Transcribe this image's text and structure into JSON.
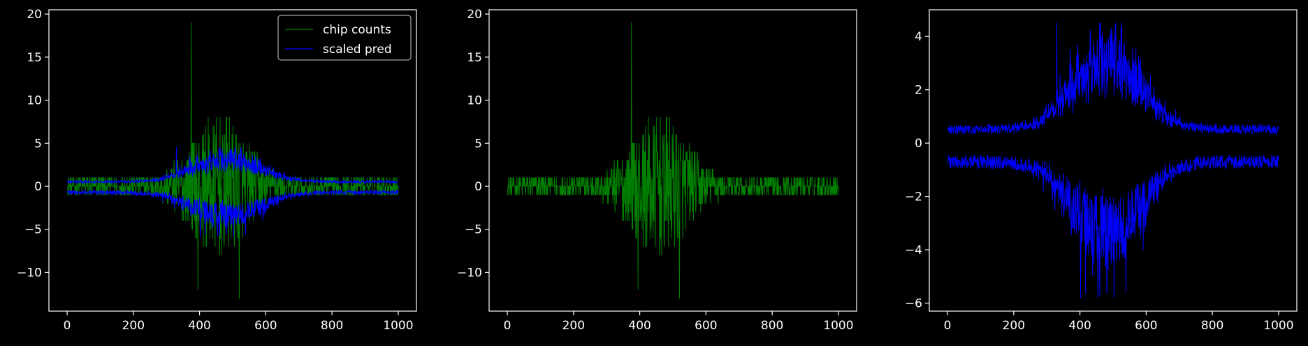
{
  "colors": {
    "background": "#000000",
    "axes": "#ffffff",
    "green": "#008000",
    "blue": "#0000ff"
  },
  "chart_data": [
    {
      "type": "line",
      "title": "",
      "xlabel": "",
      "ylabel": "",
      "xlim": [
        -55,
        1055
      ],
      "ylim": [
        -14.5,
        20.5
      ],
      "xticks": [
        0,
        200,
        400,
        600,
        800,
        1000
      ],
      "yticks": [
        -10,
        -5,
        0,
        5,
        10,
        15,
        20
      ],
      "legend": {
        "position": "top-right",
        "entries": [
          "chip counts",
          "scaled pred"
        ]
      },
      "series": [
        {
          "name": "chip counts",
          "color": "#008000",
          "kind": "counts",
          "x_range": [
            0,
            1000
          ],
          "peaks": [
            [
              375,
              19
            ],
            [
              395,
              7
            ],
            [
              470,
              6
            ],
            [
              510,
              6
            ]
          ],
          "troughs": [
            [
              395,
              -12
            ],
            [
              520,
              -13
            ],
            [
              440,
              -6
            ]
          ],
          "baseline_amplitude": 1
        },
        {
          "name": "scaled pred",
          "color": "#0000ff",
          "kind": "envelope",
          "x_range": [
            0,
            1000
          ],
          "upper_range": [
            0.2,
            4.5
          ],
          "lower_range": [
            -0.2,
            -5.8
          ],
          "active_region": [
            300,
            700
          ]
        }
      ]
    },
    {
      "type": "line",
      "title": "",
      "xlabel": "",
      "ylabel": "",
      "xlim": [
        -55,
        1055
      ],
      "ylim": [
        -14.5,
        20.5
      ],
      "xticks": [
        0,
        200,
        400,
        600,
        800,
        1000
      ],
      "yticks": [
        -10,
        -5,
        0,
        5,
        10,
        15,
        20
      ],
      "series": [
        {
          "name": "chip counts",
          "color": "#008000",
          "kind": "counts",
          "x_range": [
            0,
            1000
          ],
          "peaks": [
            [
              375,
              19
            ],
            [
              395,
              7
            ],
            [
              470,
              6
            ],
            [
              510,
              6
            ]
          ],
          "troughs": [
            [
              395,
              -12
            ],
            [
              520,
              -13
            ],
            [
              440,
              -6
            ]
          ],
          "baseline_amplitude": 1
        }
      ]
    },
    {
      "type": "line",
      "title": "",
      "xlabel": "",
      "ylabel": "",
      "xlim": [
        -55,
        1055
      ],
      "ylim": [
        -6.3,
        5.0
      ],
      "xticks": [
        0,
        200,
        400,
        600,
        800,
        1000
      ],
      "yticks": [
        -6,
        -4,
        -2,
        0,
        2,
        4
      ],
      "series": [
        {
          "name": "scaled pred",
          "color": "#0000ff",
          "kind": "envelope",
          "x_range": [
            0,
            1000
          ],
          "upper_range": [
            0.2,
            4.5
          ],
          "lower_range": [
            -0.2,
            -5.8
          ],
          "active_region": [
            300,
            700
          ]
        }
      ]
    }
  ]
}
